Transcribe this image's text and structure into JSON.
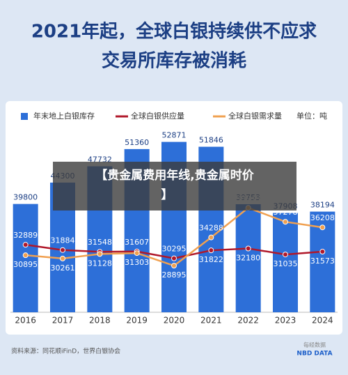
{
  "chart_data": {
    "type": "bar",
    "title": [
      "2021年起，全球白银持续供不应求",
      "交易所库存被消耗"
    ],
    "unit_label": "单位：吨",
    "categories": [
      "2016",
      "2017",
      "2018",
      "2019",
      "2020",
      "2021",
      "2022",
      "2023",
      "2024"
    ],
    "ylim": [
      17000,
      60000
    ],
    "y2lim": [
      20000,
      59000
    ],
    "series": [
      {
        "name": "年末地上白银库存",
        "type": "bar",
        "color": "#2d6fd8",
        "values": [
          39800,
          44300,
          47732,
          51360,
          52871,
          51846,
          39753,
          37908,
          38194
        ]
      },
      {
        "name": "全球白银供应量",
        "type": "line",
        "axis": "y2",
        "color": "#b0182a",
        "values": [
          32889,
          31884,
          31548,
          31607,
          30295,
          31822,
          32180,
          31035,
          31573
        ]
      },
      {
        "name": "全球白银需求量",
        "type": "line",
        "axis": "y2",
        "color": "#f0a050",
        "values": [
          30895,
          30261,
          31128,
          31303,
          28895,
          34288,
          39943,
          37278,
          36208
        ]
      }
    ]
  },
  "source": "资料来源：同花顺iFinD，世界白银协会",
  "logo": [
    "每经数据",
    "NBD DATA"
  ],
  "overlay": [
    "【贵金属费用年线,贵金属时价",
    "】"
  ]
}
